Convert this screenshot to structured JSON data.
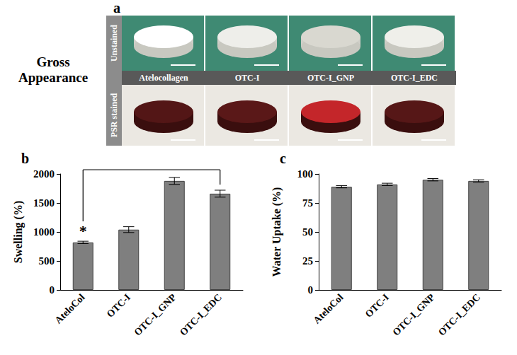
{
  "panel_a": {
    "label": "a",
    "title": "Gross Appearance",
    "rows": [
      "Unstained",
      "PSR stained"
    ],
    "columns": [
      "Atelocollagen",
      "OTC-I",
      "OTC-I_GNP",
      "OTC-I_EDC"
    ]
  },
  "chart_data": [
    {
      "panel_label": "b",
      "type": "bar",
      "ylabel": "Swelling (%)",
      "categories": [
        "AteloCol",
        "OTC-I",
        "OTC-I_GNP",
        "OTC-I_EDC"
      ],
      "values": [
        820,
        1040,
        1880,
        1660
      ],
      "errors": [
        20,
        50,
        60,
        60
      ],
      "color": "#7f7f7f",
      "ylim": [
        0,
        2000
      ],
      "yticks": [
        0,
        500,
        1000,
        1500,
        2000
      ],
      "grid": false,
      "annotations": [
        {
          "text": "*",
          "from": "AteloCol",
          "to": "OTC-I_EDC"
        }
      ]
    },
    {
      "panel_label": "c",
      "type": "bar",
      "ylabel": "Water Uptake (%)",
      "categories": [
        "AteloCol",
        "OTC-I",
        "OTC-I_GNP",
        "OTC-I_EDC"
      ],
      "values": [
        89,
        91,
        95,
        94
      ],
      "errors": [
        1,
        1,
        1,
        1
      ],
      "color": "#7f7f7f",
      "ylim": [
        0,
        100
      ],
      "yticks": [
        0,
        25,
        50,
        75,
        100
      ],
      "grid": false
    }
  ]
}
